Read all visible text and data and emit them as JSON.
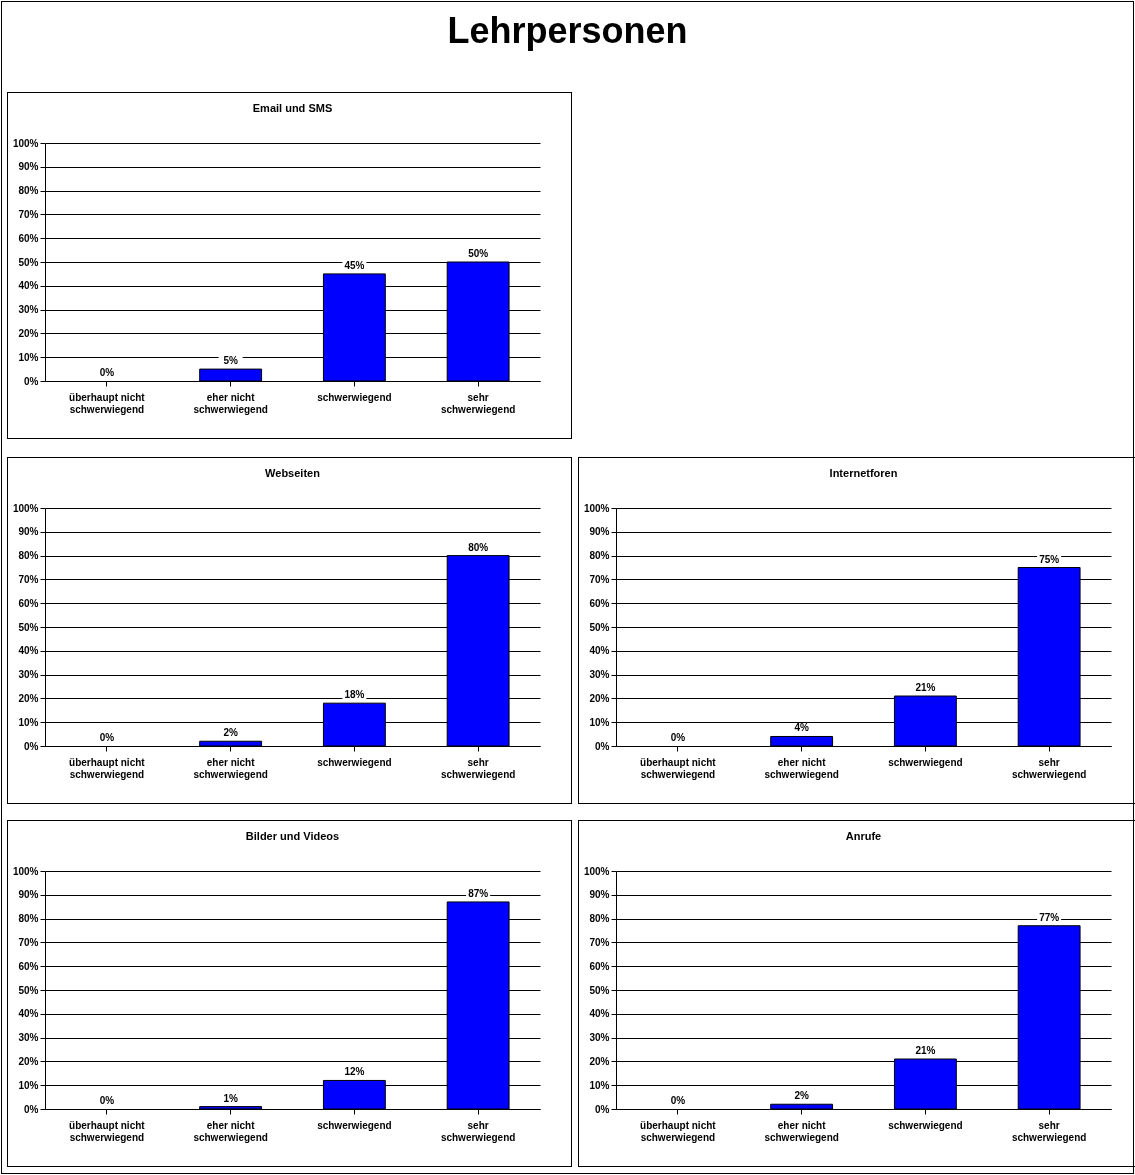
{
  "chart_data": [
    {
      "type": "other",
      "title": "Lehrpersonen"
    },
    {
      "type": "bar",
      "title": "Email und SMS",
      "categories": [
        "überhaupt nicht schwerwiegend",
        "eher nicht schwerwiegend",
        "schwerwiegend",
        "sehr schwerwiegend"
      ],
      "values": [
        0,
        5,
        45,
        50
      ],
      "value_labels": [
        "0%",
        "5%",
        "45%",
        "50%"
      ],
      "color": "#0000ff",
      "ylim": [
        0,
        100
      ],
      "yticks": [
        {
          "value": 0,
          "label": "0%"
        },
        {
          "value": 10,
          "label": "10%"
        },
        {
          "value": 20,
          "label": "20%"
        },
        {
          "value": 30,
          "label": "30%"
        },
        {
          "value": 40,
          "label": "40%"
        },
        {
          "value": 50,
          "label": "50%"
        },
        {
          "value": 60,
          "label": "60%"
        },
        {
          "value": 70,
          "label": "70%"
        },
        {
          "value": 80,
          "label": "80%"
        },
        {
          "value": 90,
          "label": "90%"
        },
        {
          "value": 100,
          "label": "100%"
        }
      ],
      "grid": "y"
    },
    {
      "type": "bar",
      "title": "Webseiten",
      "categories": [
        "überhaupt nicht schwerwiegend",
        "eher nicht schwerwiegend",
        "schwerwiegend",
        "sehr schwerwiegend"
      ],
      "values": [
        0,
        2,
        18,
        80
      ],
      "value_labels": [
        "0%",
        "2%",
        "18%",
        "80%"
      ],
      "color": "#0000ff",
      "ylim": [
        0,
        100
      ],
      "yticks": [
        {
          "value": 0,
          "label": "0%"
        },
        {
          "value": 10,
          "label": "10%"
        },
        {
          "value": 20,
          "label": "20%"
        },
        {
          "value": 30,
          "label": "30%"
        },
        {
          "value": 40,
          "label": "40%"
        },
        {
          "value": 50,
          "label": "50%"
        },
        {
          "value": 60,
          "label": "60%"
        },
        {
          "value": 70,
          "label": "70%"
        },
        {
          "value": 80,
          "label": "80%"
        },
        {
          "value": 90,
          "label": "90%"
        },
        {
          "value": 100,
          "label": "100%"
        }
      ],
      "grid": "y"
    },
    {
      "type": "bar",
      "title": "Internetforen",
      "categories": [
        "überhaupt nicht schwerwiegend",
        "eher nicht schwerwiegend",
        "schwerwiegend",
        "sehr schwerwiegend"
      ],
      "values": [
        0,
        4,
        21,
        75
      ],
      "value_labels": [
        "0%",
        "4%",
        "21%",
        "75%"
      ],
      "color": "#0000ff",
      "ylim": [
        0,
        100
      ],
      "yticks": [
        {
          "value": 0,
          "label": "0%"
        },
        {
          "value": 10,
          "label": "10%"
        },
        {
          "value": 20,
          "label": "20%"
        },
        {
          "value": 30,
          "label": "30%"
        },
        {
          "value": 40,
          "label": "40%"
        },
        {
          "value": 50,
          "label": "50%"
        },
        {
          "value": 60,
          "label": "60%"
        },
        {
          "value": 70,
          "label": "70%"
        },
        {
          "value": 80,
          "label": "80%"
        },
        {
          "value": 90,
          "label": "90%"
        },
        {
          "value": 100,
          "label": "100%"
        }
      ],
      "grid": "y"
    },
    {
      "type": "bar",
      "title": "Bilder und Videos",
      "categories": [
        "überhaupt nicht schwerwiegend",
        "eher nicht schwerwiegend",
        "schwerwiegend",
        "sehr schwerwiegend"
      ],
      "values": [
        0,
        1,
        12,
        87
      ],
      "value_labels": [
        "0%",
        "1%",
        "12%",
        "87%"
      ],
      "color": "#0000ff",
      "ylim": [
        0,
        100
      ],
      "yticks": [
        {
          "value": 0,
          "label": "0%"
        },
        {
          "value": 10,
          "label": "10%"
        },
        {
          "value": 20,
          "label": "20%"
        },
        {
          "value": 30,
          "label": "30%"
        },
        {
          "value": 40,
          "label": "40%"
        },
        {
          "value": 50,
          "label": "50%"
        },
        {
          "value": 60,
          "label": "60%"
        },
        {
          "value": 70,
          "label": "70%"
        },
        {
          "value": 80,
          "label": "80%"
        },
        {
          "value": 90,
          "label": "90%"
        },
        {
          "value": 100,
          "label": "100%"
        }
      ],
      "grid": "y"
    },
    {
      "type": "bar",
      "title": "Anrufe",
      "categories": [
        "überhaupt nicht schwerwiegend",
        "eher nicht schwerwiegend",
        "schwerwiegend",
        "sehr schwerwiegend"
      ],
      "values": [
        0,
        2,
        21,
        77
      ],
      "value_labels": [
        "0%",
        "2%",
        "21%",
        "77%"
      ],
      "color": "#0000ff",
      "ylim": [
        0,
        100
      ],
      "yticks": [
        {
          "value": 0,
          "label": "0%"
        },
        {
          "value": 10,
          "label": "10%"
        },
        {
          "value": 20,
          "label": "20%"
        },
        {
          "value": 30,
          "label": "30%"
        },
        {
          "value": 40,
          "label": "40%"
        },
        {
          "value": 50,
          "label": "50%"
        },
        {
          "value": 60,
          "label": "60%"
        },
        {
          "value": 70,
          "label": "70%"
        },
        {
          "value": 80,
          "label": "80%"
        },
        {
          "value": 90,
          "label": "90%"
        },
        {
          "value": 100,
          "label": "100%"
        }
      ],
      "grid": "y"
    }
  ]
}
